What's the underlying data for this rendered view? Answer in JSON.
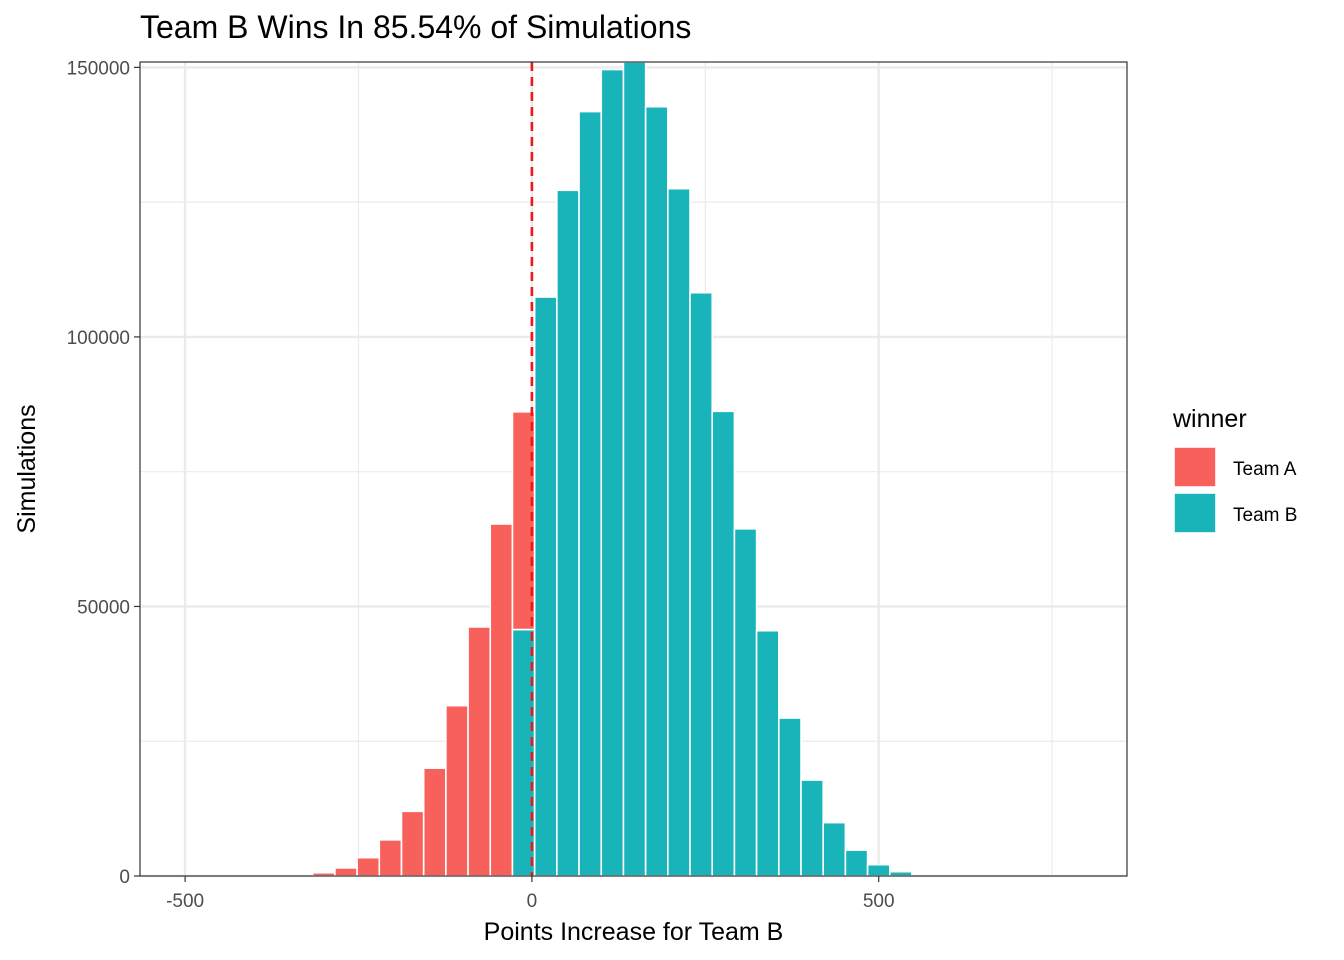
{
  "chart_data": {
    "type": "bar",
    "title": "Team B Wins In 85.54% of Simulations",
    "xlabel": "Points Increase for Team B",
    "ylabel": "Simulations",
    "xlim": [
      -565,
      858
    ],
    "ylim": [
      0,
      151000
    ],
    "x_ticks": [
      -500,
      0,
      500
    ],
    "x_tick_labels": [
      "-500",
      "0",
      "500"
    ],
    "x_minor_ticks": [
      -250,
      250,
      750
    ],
    "y_ticks": [
      0,
      50000,
      100000,
      150000
    ],
    "y_tick_labels": [
      "0",
      "50000",
      "100000",
      "150000"
    ],
    "y_minor_ticks": [
      25000,
      75000,
      125000
    ],
    "grid": true,
    "bin_width": 32,
    "reference_line": {
      "x": 0,
      "style": "dashed",
      "color": "#f2161b"
    },
    "legend": {
      "title": "winner",
      "position": "right"
    },
    "series": [
      {
        "name": "Team A",
        "color": "#f8605c",
        "bars": [
          {
            "x": -300,
            "y": 600
          },
          {
            "x": -268,
            "y": 1500
          },
          {
            "x": -236,
            "y": 3400
          },
          {
            "x": -204,
            "y": 6700
          },
          {
            "x": -172,
            "y": 12000
          },
          {
            "x": -140,
            "y": 20000
          },
          {
            "x": -108,
            "y": 31600
          },
          {
            "x": -76,
            "y": 46200
          },
          {
            "x": -44,
            "y": 65300
          },
          {
            "x": -12,
            "y": 40400,
            "base": 45700
          }
        ]
      },
      {
        "name": "Team B",
        "color": "#18b4b9",
        "bars": [
          {
            "x": -12,
            "y": 45700
          },
          {
            "x": 20,
            "y": 107400
          },
          {
            "x": 52,
            "y": 127200
          },
          {
            "x": 84,
            "y": 141800
          },
          {
            "x": 116,
            "y": 149600
          },
          {
            "x": 148,
            "y": 151000
          },
          {
            "x": 180,
            "y": 142700
          },
          {
            "x": 212,
            "y": 127500
          },
          {
            "x": 244,
            "y": 108200
          },
          {
            "x": 276,
            "y": 86200
          },
          {
            "x": 308,
            "y": 64400
          },
          {
            "x": 340,
            "y": 45500
          },
          {
            "x": 372,
            "y": 29300
          },
          {
            "x": 404,
            "y": 17800
          },
          {
            "x": 436,
            "y": 9900
          },
          {
            "x": 468,
            "y": 4800
          },
          {
            "x": 500,
            "y": 2100
          },
          {
            "x": 532,
            "y": 800
          }
        ]
      }
    ]
  }
}
